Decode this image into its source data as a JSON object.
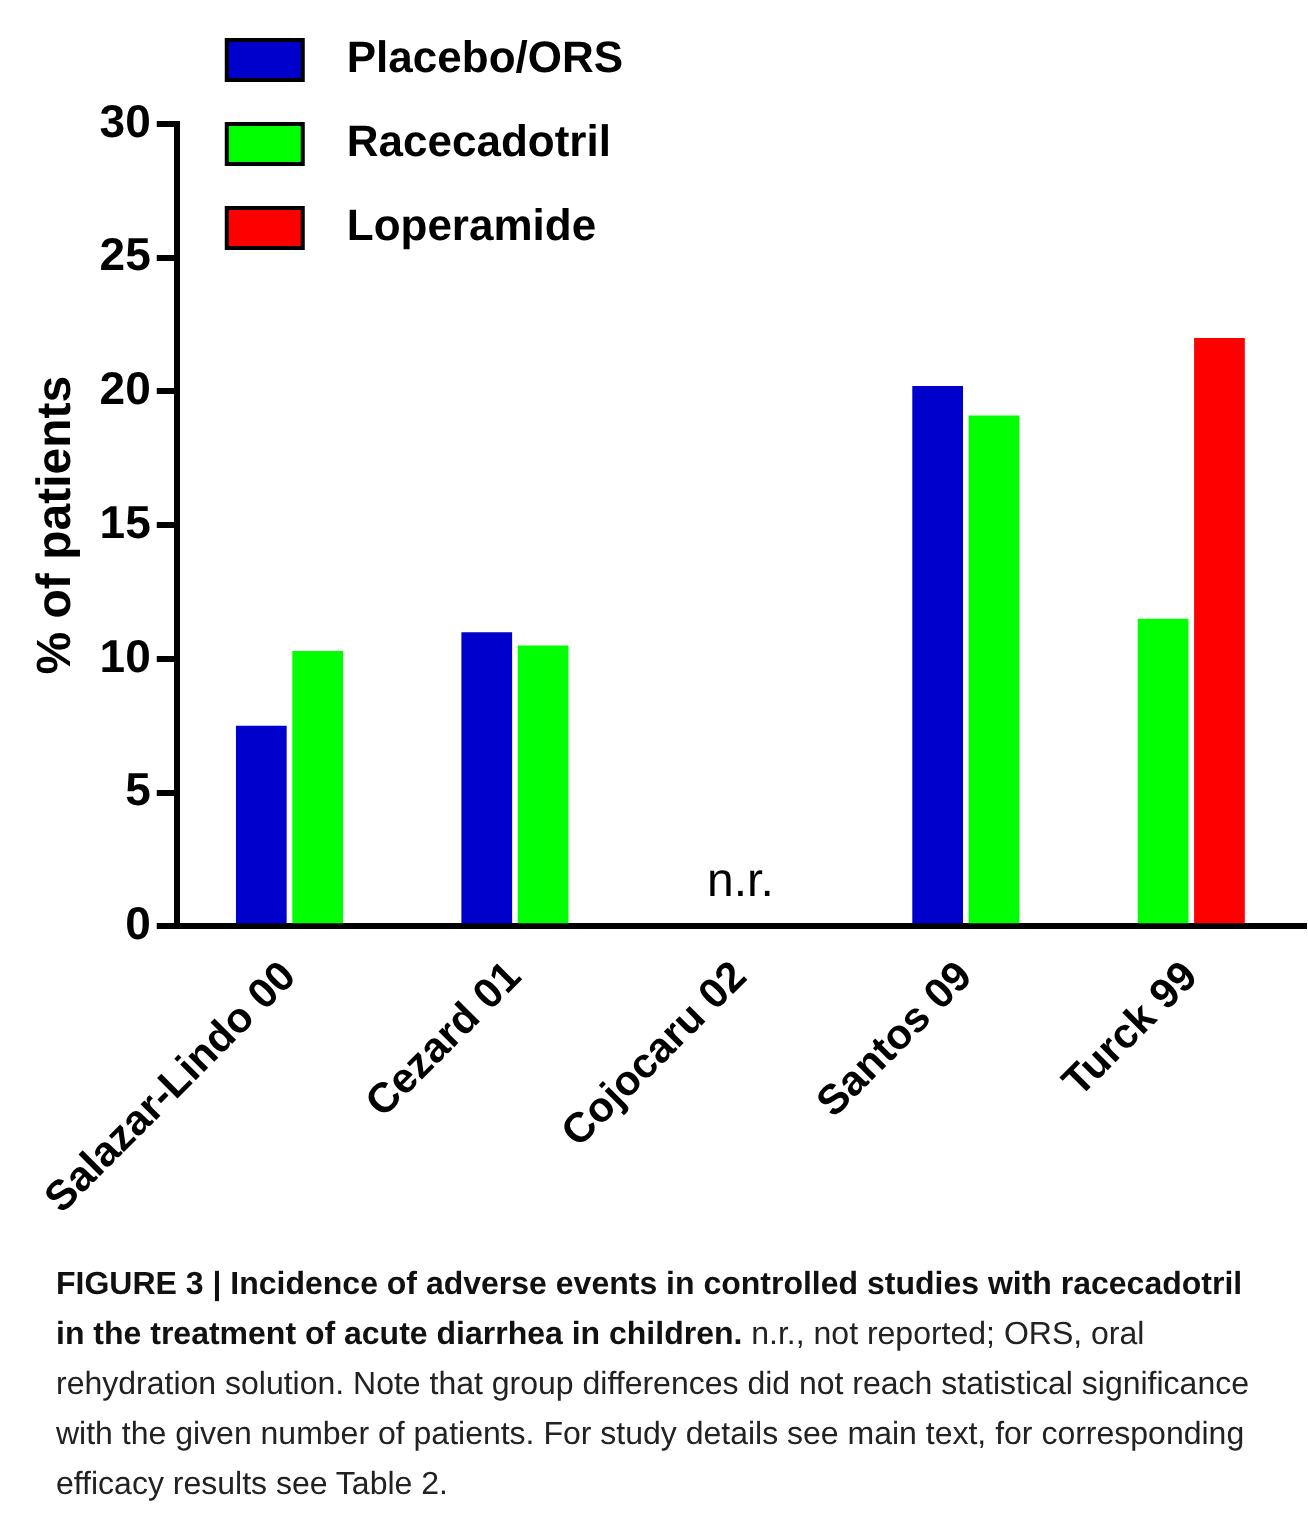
{
  "chart_data": {
    "type": "bar",
    "title": "FIGURE 3 | Incidence of adverse events in controlled studies with racecadotril in the treatment of acute diarrhea in children.",
    "ylabel": "% of patients",
    "categories": [
      "Salazar-Lindo 00",
      "Cezard 01",
      "Cojocaru 02",
      "Santos 09",
      "Turck 99"
    ],
    "series": [
      {
        "name": "Placebo/ORS",
        "color": "#0000cc",
        "values": [
          7.5,
          11,
          null,
          20.2,
          null
        ]
      },
      {
        "name": "Racecadotril",
        "color": "#00ff00",
        "values": [
          10.3,
          10.5,
          null,
          19.1,
          11.5
        ]
      },
      {
        "name": "Loperamide",
        "color": "#ff0000",
        "values": [
          null,
          null,
          null,
          null,
          22
        ]
      }
    ],
    "ylim": [
      0,
      30
    ],
    "yticks": [
      0,
      5,
      10,
      15,
      20,
      25,
      30
    ],
    "grid": false,
    "legend": "top left",
    "annotations": [
      "n.r.",
      "n.r., not reported; ORS, oral rehydration solution. Note that group differences did not reach statistical significance with the given number of patients. For study details see main text, for corresponding efficacy results see Table 2."
    ]
  }
}
